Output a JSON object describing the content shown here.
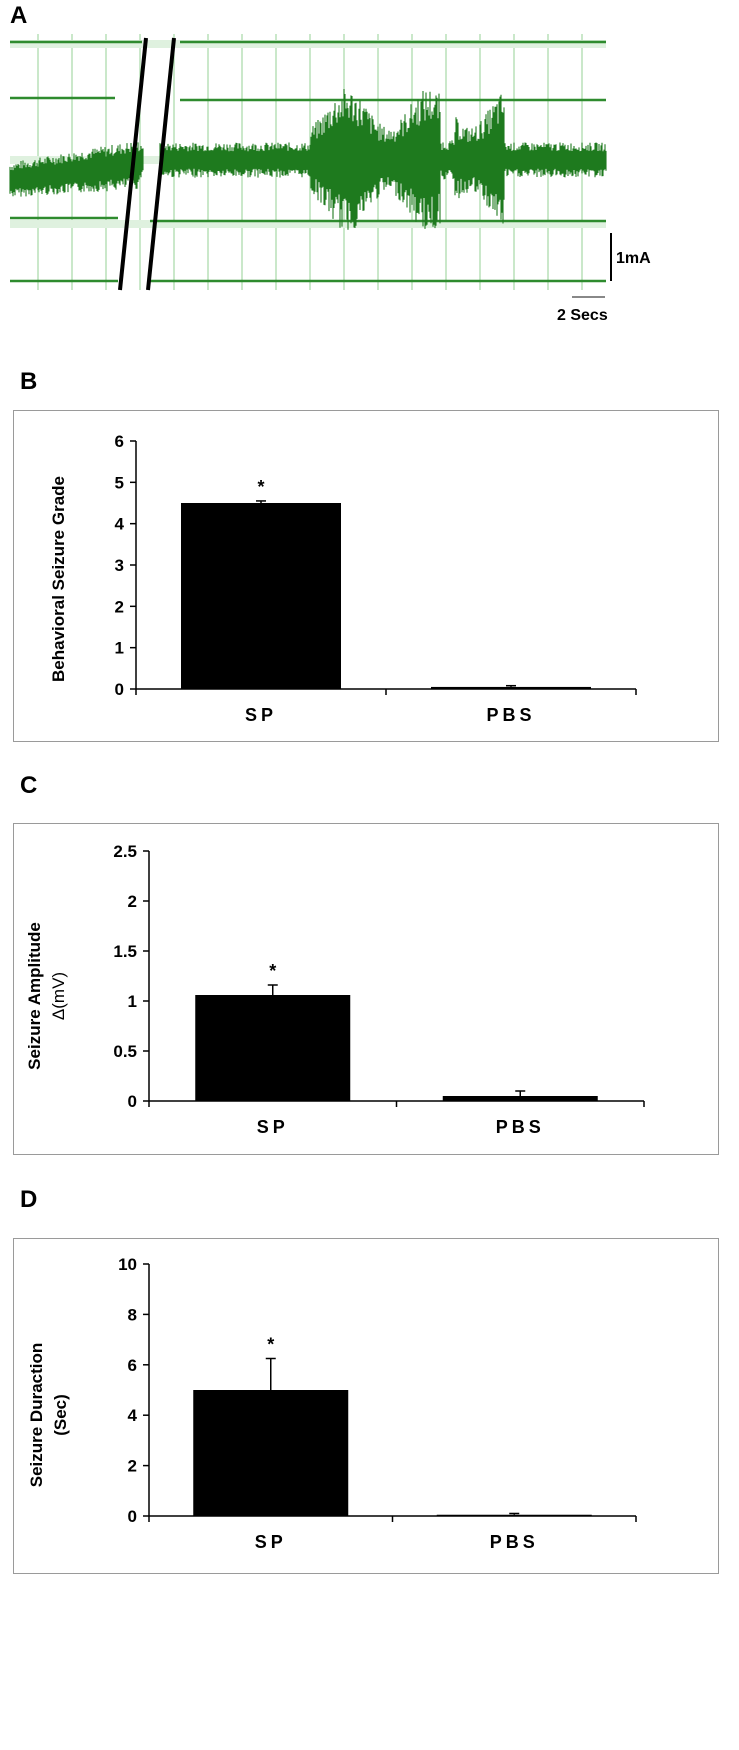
{
  "panels": {
    "a": {
      "label": "A"
    },
    "b": {
      "label": "B"
    },
    "c": {
      "label": "C"
    },
    "d": {
      "label": "D"
    }
  },
  "trace": {
    "scalebar_amplitude": "1mA",
    "scalebar_time": "2 Secs",
    "trace_color": "#1e7a1e",
    "grid_color": "#a6d8a6",
    "hline_color": "#2e8b2e"
  },
  "chart_data": [
    {
      "panel": "B",
      "type": "bar",
      "categories": [
        "SP",
        "PBS"
      ],
      "values": [
        4.5,
        0.05
      ],
      "errors": [
        0.05,
        0.03
      ],
      "significance": [
        "*",
        ""
      ],
      "ylabel": "Behavioral Seizure Grade",
      "ylim": [
        0,
        6
      ],
      "yticks": [
        "0",
        "1",
        "2",
        "3",
        "4",
        "5",
        "6"
      ],
      "bar_color": "#000000",
      "grid": false
    },
    {
      "panel": "C",
      "type": "bar",
      "categories": [
        "SP",
        "PBS"
      ],
      "values": [
        1.06,
        0.05
      ],
      "errors": [
        0.1,
        0.05
      ],
      "significance": [
        "*",
        ""
      ],
      "ylabel_line1": "Seizure Amplitude",
      "ylabel_line2": "Δ(mV)",
      "ylim": [
        0,
        2.5
      ],
      "yticks": [
        "0",
        "0.5",
        "1",
        "1.5",
        "2",
        "2.5"
      ],
      "bar_color": "#000000",
      "grid": false
    },
    {
      "panel": "D",
      "type": "bar",
      "categories": [
        "SP",
        "PBS"
      ],
      "values": [
        5.0,
        0.05
      ],
      "errors": [
        1.25,
        0.05
      ],
      "significance": [
        "*",
        ""
      ],
      "ylabel_line1": "Seizure Duraction",
      "ylabel_line2": "(Sec)",
      "ylim": [
        0,
        10
      ],
      "yticks": [
        "0",
        "2",
        "4",
        "6",
        "8",
        "10"
      ],
      "bar_color": "#000000",
      "grid": false
    }
  ]
}
